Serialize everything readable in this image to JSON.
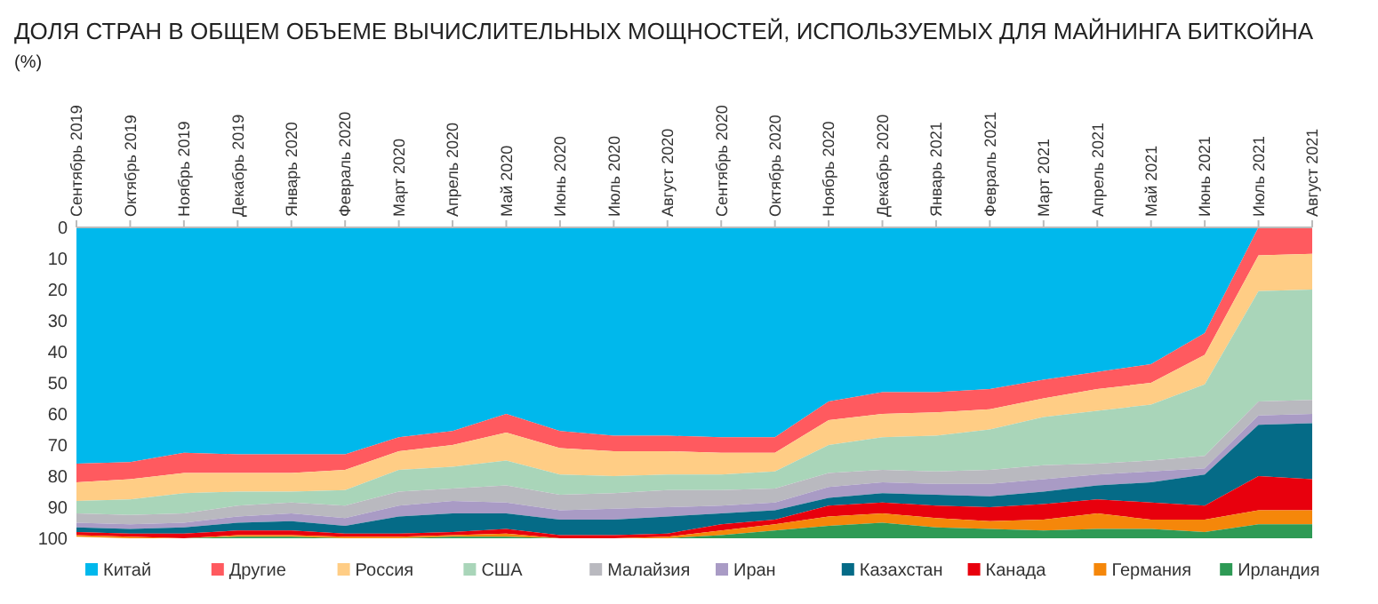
{
  "chart_data": {
    "type": "area",
    "stacked": true,
    "title": "ДОЛЯ СТРАН В ОБЩЕМ ОБЪЕМЕ ВЫЧИСЛИТЕЛЬНЫХ МОЩНОСТЕЙ, ИСПОЛЬЗУЕМЫХ ДЛЯ МАЙНИНГА БИТКОЙНА",
    "subtitle": "(%)",
    "categories": [
      "Сентябрь 2019",
      "Октябрь 2019",
      "Ноябрь 2019",
      "Декабрь 2019",
      "Январь 2020",
      "Февраль 2020",
      "Март 2020",
      "Апрель 2020",
      "Май 2020",
      "Июнь 2020",
      "Июль 2020",
      "Август 2020",
      "Сентябрь 2020",
      "Октябрь 2020",
      "Ноябрь 2020",
      "Декабрь 2020",
      "Январь 2021",
      "Февраль 2021",
      "Март 2021",
      "Апрель 2021",
      "Май 2021",
      "Июнь 2021",
      "Июль 2021",
      "Август 2021"
    ],
    "ylim": [
      100,
      0
    ],
    "yticks": [
      0,
      10,
      20,
      30,
      40,
      50,
      60,
      70,
      80,
      90,
      100
    ],
    "legend": "bottom",
    "series": [
      {
        "name": "Китай",
        "color": "#00b8ec",
        "values": [
          76,
          75.5,
          72.5,
          73,
          73,
          73,
          67.5,
          65.5,
          60,
          65.5,
          67,
          67,
          67.5,
          67.5,
          56,
          53,
          53,
          52,
          49,
          46.5,
          44,
          34,
          0,
          0
        ]
      },
      {
        "name": "Другие",
        "color": "#ff5a5f",
        "values": [
          6,
          5.5,
          6.5,
          6,
          6,
          5,
          4.5,
          4.5,
          6,
          5.5,
          5,
          5,
          5,
          5,
          6,
          7,
          6.5,
          6.5,
          6,
          5.5,
          6,
          7,
          9,
          8.5
        ]
      },
      {
        "name": "Россия",
        "color": "#ffcd85",
        "values": [
          6,
          6.5,
          6.5,
          6,
          6,
          6.5,
          6,
          7,
          9,
          8.5,
          8,
          7.5,
          7,
          6,
          8,
          7.5,
          7.5,
          6.5,
          6,
          7,
          7,
          9.5,
          11.5,
          11.5
        ]
      },
      {
        "name": "США",
        "color": "#a9d5b9",
        "values": [
          4,
          5,
          6.5,
          4.5,
          3.5,
          5,
          7,
          7,
          8,
          6.5,
          5.5,
          5,
          5,
          5.5,
          9,
          10.5,
          11.5,
          13,
          15.5,
          17,
          18,
          23,
          35.5,
          35.5
        ]
      },
      {
        "name": "Малайзия",
        "color": "#b9b9bf",
        "values": [
          3,
          3,
          3,
          3.5,
          3.5,
          4,
          4.5,
          4,
          5.5,
          5,
          5,
          5.5,
          5,
          4.5,
          4.5,
          4,
          4,
          4.5,
          4.5,
          3.5,
          3.5,
          4,
          4.5,
          4.5
        ]
      },
      {
        "name": "Иран",
        "color": "#a99bc5",
        "values": [
          1.5,
          1.5,
          1.5,
          2,
          2.5,
          2.5,
          3.5,
          4,
          3.5,
          3,
          3.5,
          3,
          2.5,
          2.5,
          3.5,
          3.5,
          3.5,
          4,
          4,
          3.5,
          3.5,
          2,
          3,
          3
        ]
      },
      {
        "name": "Казахстан",
        "color": "#056b87",
        "values": [
          1.5,
          1.5,
          2,
          2.5,
          3,
          2.5,
          5.5,
          6,
          5,
          5,
          5,
          5.5,
          3.5,
          3,
          2.5,
          3,
          3.5,
          3.5,
          4,
          4.5,
          6.5,
          10,
          16.5,
          18
        ]
      },
      {
        "name": "Канада",
        "color": "#e8000d",
        "values": [
          1,
          1,
          1.5,
          1.5,
          1.5,
          1,
          1,
          1,
          1.5,
          1,
          1,
          1,
          2,
          1.5,
          3.5,
          3.5,
          4,
          4.5,
          5,
          4.5,
          5.5,
          4.5,
          11,
          10
        ]
      },
      {
        "name": "Германия",
        "color": "#f5870a",
        "values": [
          0.5,
          0.5,
          0,
          0.5,
          0.5,
          0.5,
          0.5,
          0.5,
          1,
          0,
          0,
          0.5,
          1.5,
          2,
          3,
          3,
          3,
          2.5,
          3.5,
          5,
          3,
          4,
          4.5,
          4.5
        ]
      },
      {
        "name": "Ирландия",
        "color": "#2e9a55",
        "values": [
          0,
          0,
          0,
          0.5,
          0.5,
          0,
          0,
          0.5,
          0.5,
          0,
          0,
          0,
          1,
          2.5,
          4,
          5,
          3.5,
          3,
          2.5,
          3,
          3,
          2,
          4.5,
          4.5
        ]
      }
    ]
  }
}
